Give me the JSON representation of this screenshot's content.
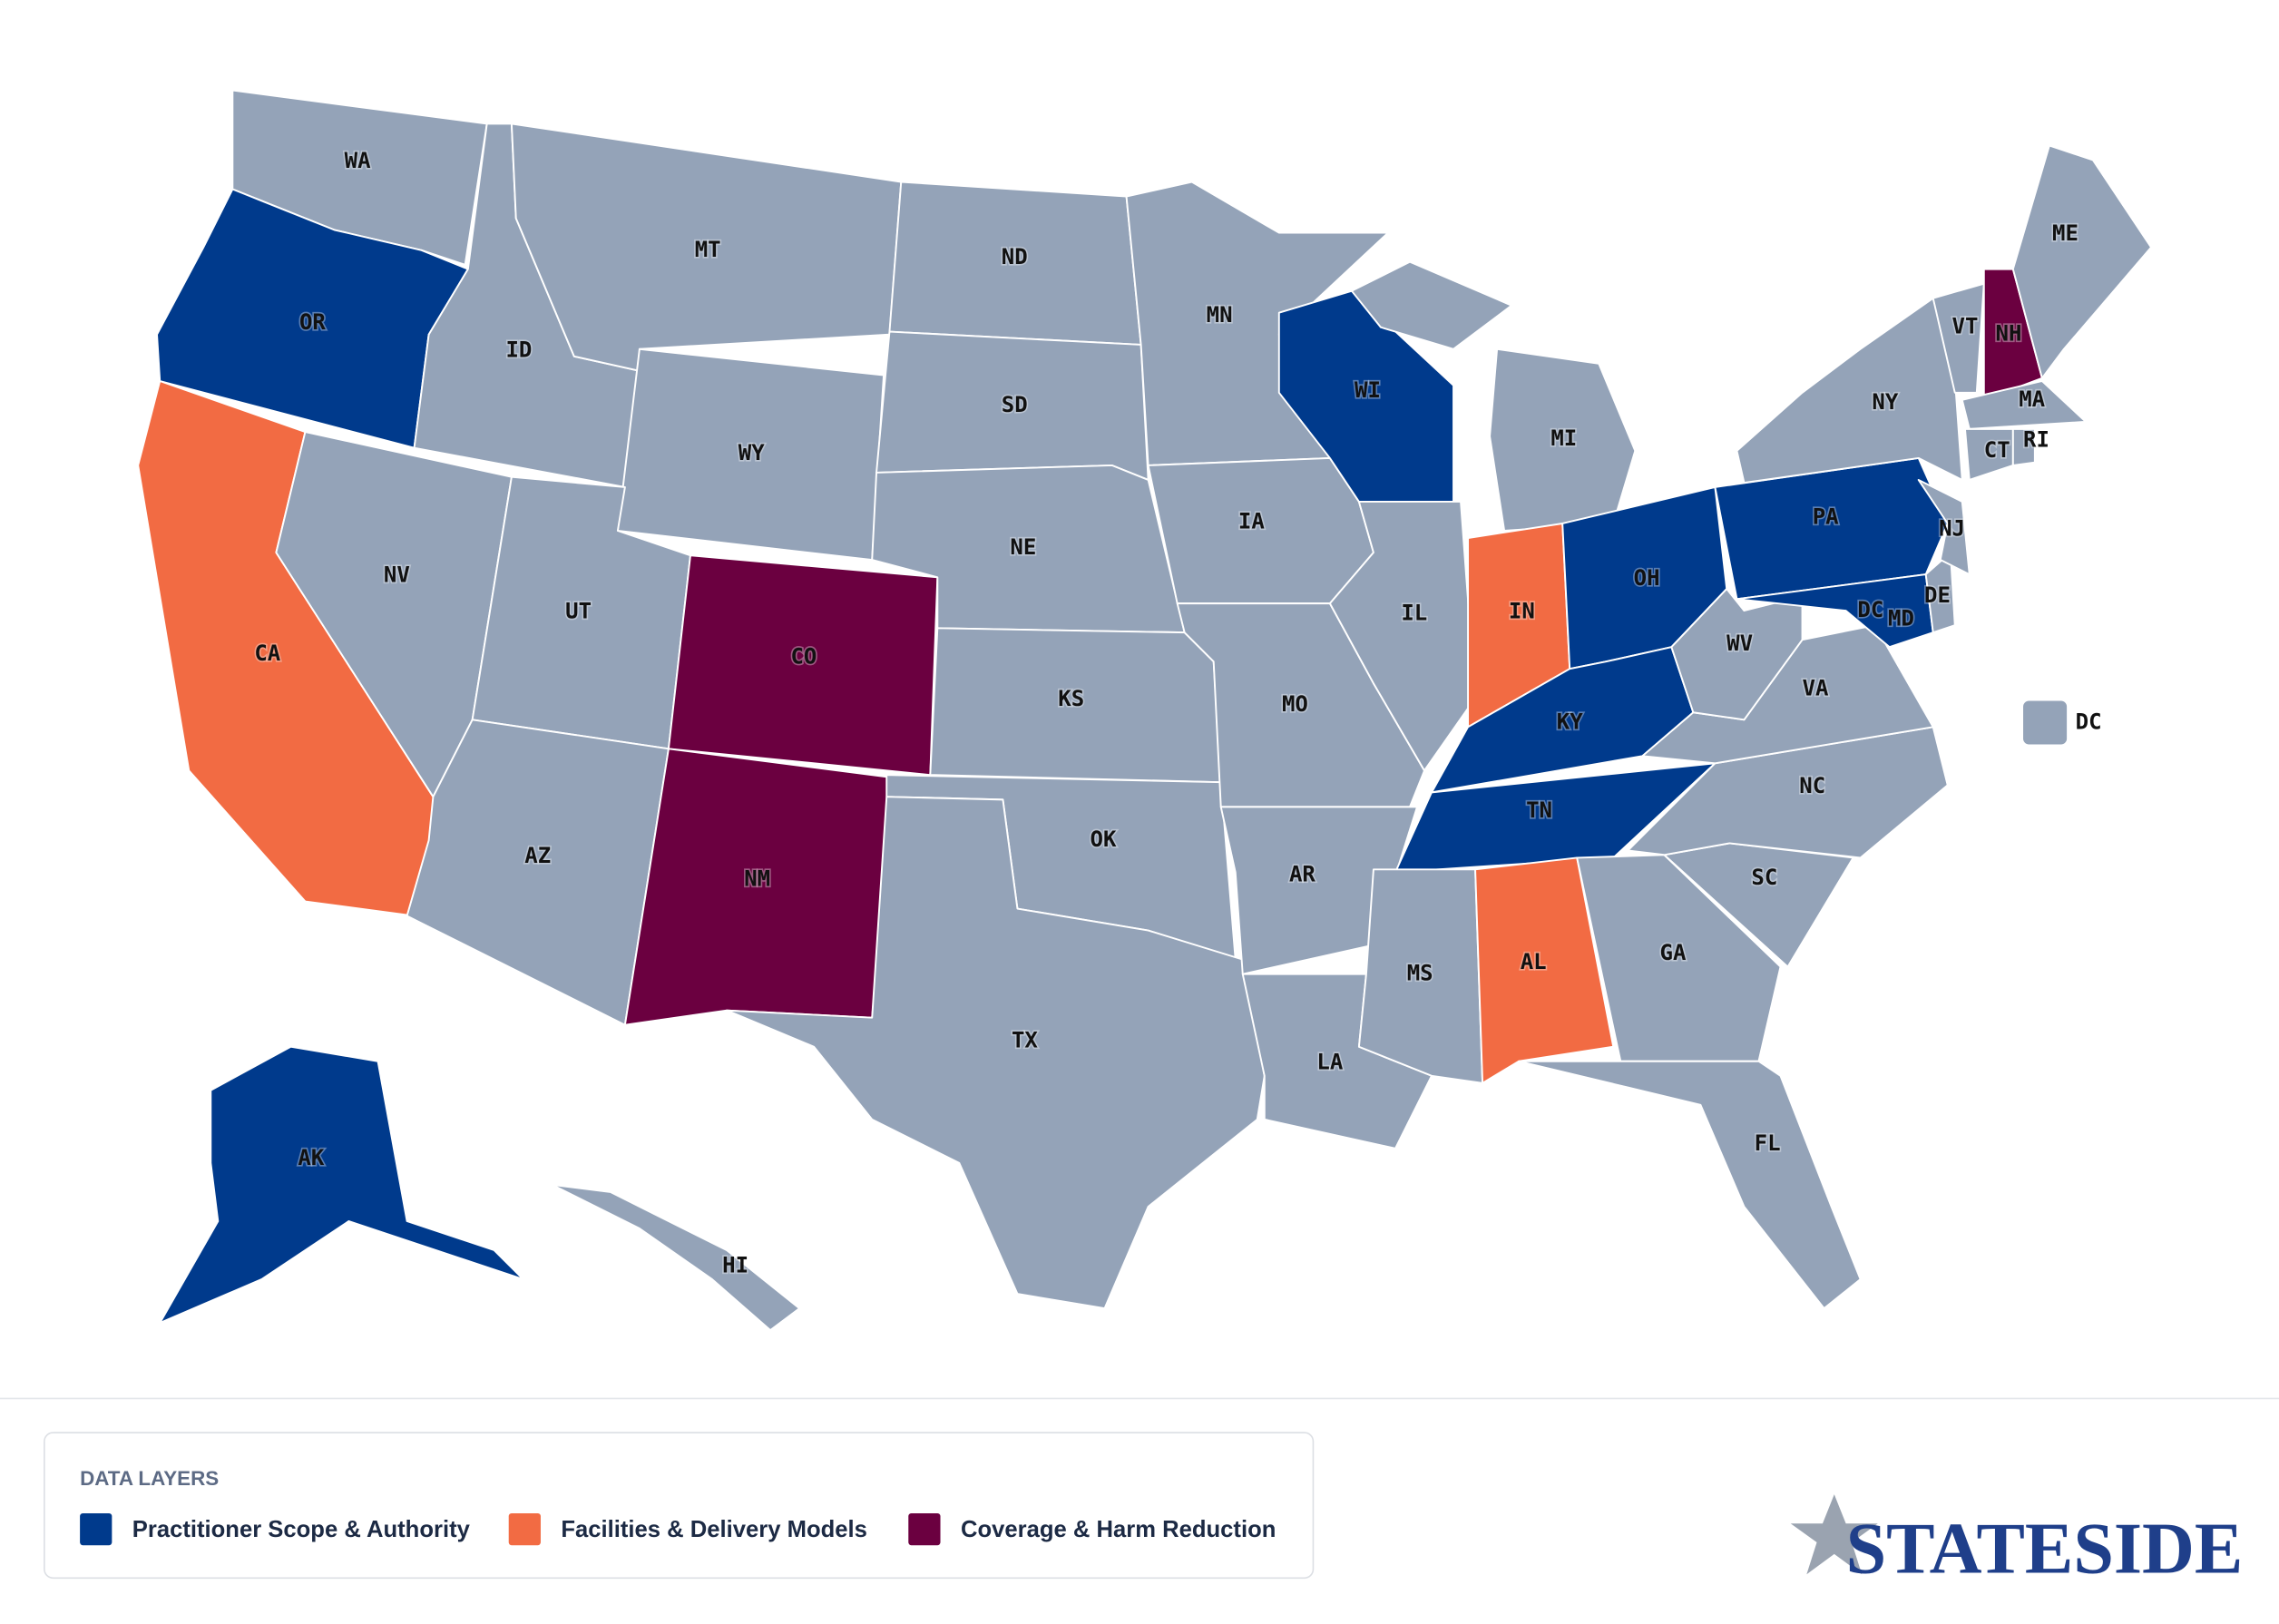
{
  "map": {
    "default_color": "#94a3b8",
    "states": [
      {
        "label": "WA",
        "layer": null
      },
      {
        "label": "OR",
        "layer": 0
      },
      {
        "label": "CA",
        "layer": 1
      },
      {
        "label": "ID",
        "layer": null
      },
      {
        "label": "NV",
        "layer": null
      },
      {
        "label": "MT",
        "layer": null
      },
      {
        "label": "WY",
        "layer": null
      },
      {
        "label": "UT",
        "layer": null
      },
      {
        "label": "AZ",
        "layer": null
      },
      {
        "label": "CO",
        "layer": 2
      },
      {
        "label": "NM",
        "layer": 2
      },
      {
        "label": "ND",
        "layer": null
      },
      {
        "label": "SD",
        "layer": null
      },
      {
        "label": "NE",
        "layer": null
      },
      {
        "label": "KS",
        "layer": null
      },
      {
        "label": "OK",
        "layer": null
      },
      {
        "label": "TX",
        "layer": null
      },
      {
        "label": "MN",
        "layer": null
      },
      {
        "label": "IA",
        "layer": null
      },
      {
        "label": "MO",
        "layer": null
      },
      {
        "label": "AR",
        "layer": null
      },
      {
        "label": "LA",
        "layer": null
      },
      {
        "label": "WI",
        "layer": 0
      },
      {
        "label": "IL",
        "layer": null
      },
      {
        "label": "MI",
        "layer": null
      },
      {
        "label": "IN",
        "layer": 1
      },
      {
        "label": "OH",
        "layer": 0
      },
      {
        "label": "KY",
        "layer": 0
      },
      {
        "label": "TN",
        "layer": 0
      },
      {
        "label": "MS",
        "layer": null
      },
      {
        "label": "AL",
        "layer": 1
      },
      {
        "label": "GA",
        "layer": null
      },
      {
        "label": "FL",
        "layer": null
      },
      {
        "label": "SC",
        "layer": null
      },
      {
        "label": "NC",
        "layer": null
      },
      {
        "label": "VA",
        "layer": null
      },
      {
        "label": "WV",
        "layer": null
      },
      {
        "label": "PA",
        "layer": 0
      },
      {
        "label": "MD",
        "layer": 0
      },
      {
        "label": "DE",
        "layer": null
      },
      {
        "label": "NJ",
        "layer": null
      },
      {
        "label": "NY",
        "layer": null
      },
      {
        "label": "VT",
        "layer": null
      },
      {
        "label": "NH",
        "layer": 2
      },
      {
        "label": "ME",
        "layer": null
      },
      {
        "label": "MA",
        "layer": null
      },
      {
        "label": "CT",
        "layer": null
      },
      {
        "label": "RI",
        "layer": null
      },
      {
        "label": "AK",
        "layer": 0
      },
      {
        "label": "HI",
        "layer": null
      }
    ],
    "dc": {
      "label": "DC",
      "layer": null
    }
  },
  "legend": {
    "title": "DATA LAYERS",
    "items": [
      {
        "name": "Practitioner Scope & Authority",
        "color": "#003a8c"
      },
      {
        "name": "Facilities & Delivery Models",
        "color": "#f26b43"
      },
      {
        "name": "Coverage & Harm Reduction",
        "color": "#6b0040"
      }
    ]
  },
  "logo": "STATESIDE"
}
